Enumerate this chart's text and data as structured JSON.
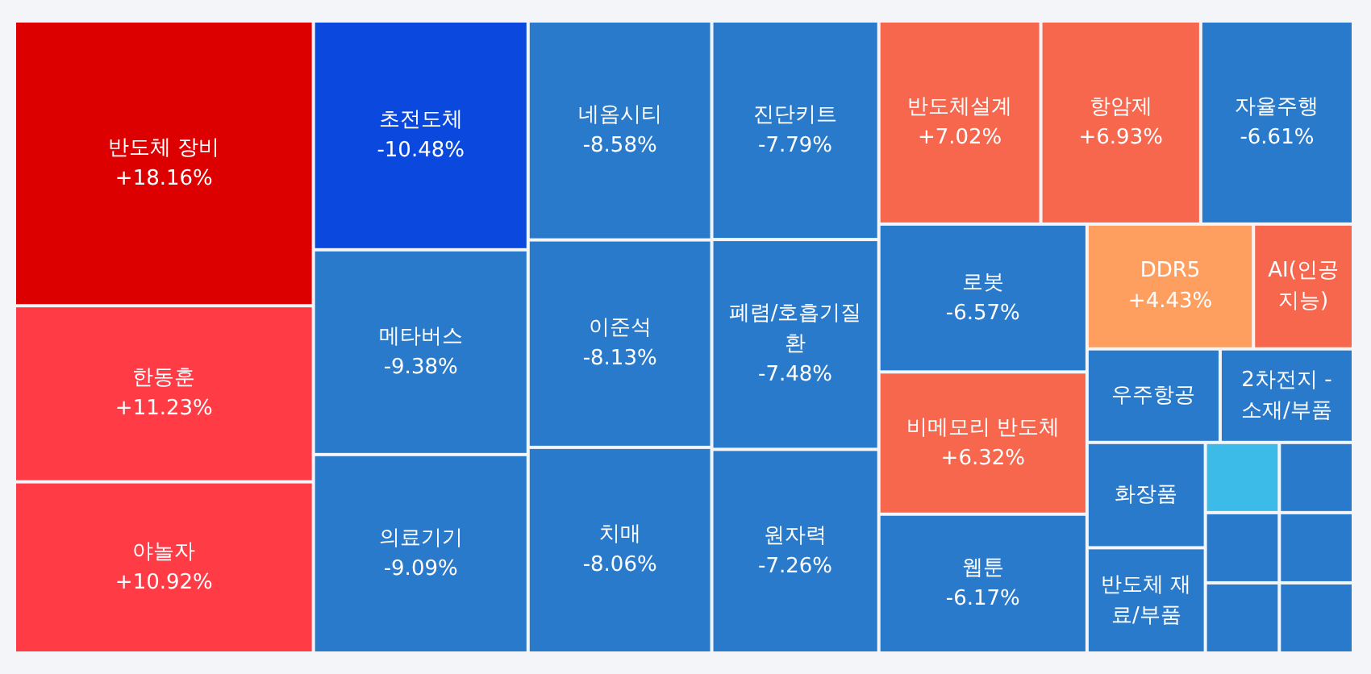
{
  "chart_data": {
    "type": "other",
    "categories": [
      "반도체 장비",
      "한동훈",
      "야놀자",
      "반도체설계",
      "항암제",
      "AI(인공지능)",
      "비메모리 반도체",
      "DDR5",
      null,
      null,
      null,
      "우주항공",
      "웹툰",
      null,
      null,
      null,
      "로봇",
      "자율주행",
      "2차전지 - 소재/부품",
      "화장품",
      "반도체 재료/부품",
      "원자력",
      "폐렴/호흡기질환",
      "진단키트",
      "치매",
      "이준석",
      "네옴시티",
      "의료기기",
      "메타버스",
      "초전도체"
    ],
    "values": [
      18.16,
      11.23,
      10.92,
      7.02,
      6.93,
      null,
      6.32,
      4.43,
      null,
      null,
      null,
      null,
      -6.17,
      null,
      null,
      null,
      -6.57,
      -6.61,
      null,
      null,
      null,
      -7.26,
      -7.48,
      -7.79,
      -8.06,
      -8.13,
      -8.58,
      -9.09,
      -9.38,
      -10.48
    ],
    "value_labels": [
      "+18.16%",
      "+11.23%",
      "+10.92%",
      "+7.02%",
      "+6.93%",
      null,
      "+6.32%",
      "+4.43%",
      null,
      null,
      null,
      null,
      "-6.17%",
      null,
      null,
      null,
      "-6.57%",
      "-6.61%",
      null,
      null,
      null,
      "-7.26%",
      "-7.48%",
      "-7.79%",
      "-8.06%",
      "-8.13%",
      "-8.58%",
      "-9.09%",
      "-9.38%",
      "-10.48%"
    ],
    "colors": [
      "#dd0000",
      "#ff3b45",
      "#ff3b45",
      "#f6674e",
      "#f6674e",
      "#f6674e",
      "#f6674e",
      "#ff9f5f",
      "#3dbbe8",
      "#2a7acc",
      "#2a7acc",
      "#2a7acc",
      "#2a7acc",
      "#2a7acc",
      "#2a7acc",
      "#2a7acc",
      "#2a7acc",
      "#2a7acc",
      "#2a7acc",
      "#2a7acc",
      "#2a7acc",
      "#2a7acc",
      "#2a7acc",
      "#2a7acc",
      "#2a7acc",
      "#2a7acc",
      "#2a7acc",
      "#2a7acc",
      "#2a7acc",
      "#0b49de"
    ]
  }
}
